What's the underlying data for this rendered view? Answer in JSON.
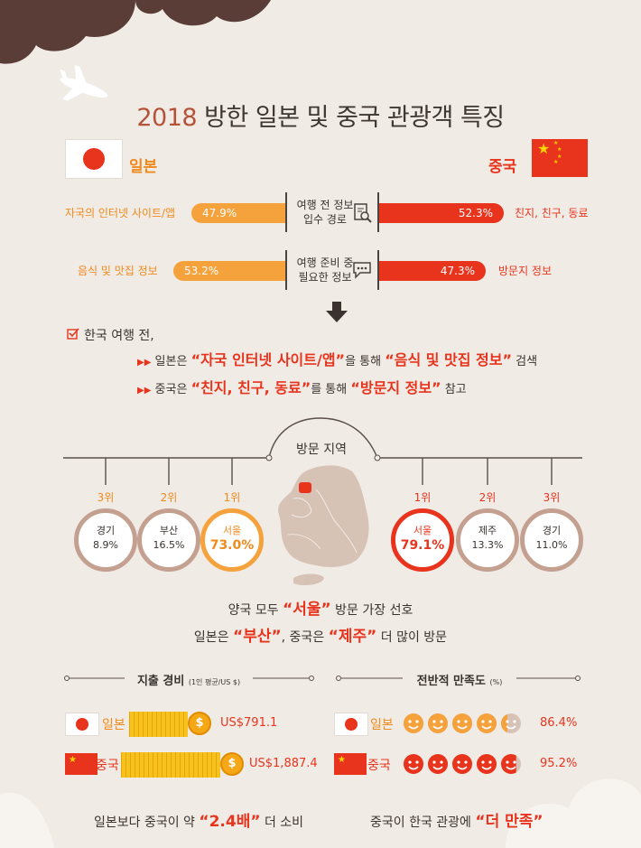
{
  "title": {
    "year": "2018",
    "text": "방한 일본 및 중국 관광객 특징"
  },
  "countries": {
    "japan": "일본",
    "china": "중국"
  },
  "rows": [
    {
      "center": [
        "여행 전 정보",
        "입수 경로"
      ],
      "jp_label": "자국의 인터넷 사이트/앱",
      "jp_value": "47.9%",
      "cn_value": "52.3%",
      "cn_label": "친지, 친구, 동료",
      "icon": "document-search-icon"
    },
    {
      "center": [
        "여행 준비 중",
        "필요한 정보"
      ],
      "jp_label": "음식 및 맛집 정보",
      "jp_value": "53.2%",
      "cn_value": "47.3%",
      "cn_label": "방문지 정보",
      "icon": "chat-bubble-icon"
    }
  ],
  "summary": {
    "heading": "한국 여행 전,",
    "line1": {
      "a": "일본은",
      "b": "“자국 인터넷 사이트/앱”",
      "c": "을 통해",
      "d": "“음식 및 맛집 정보”",
      "e": "검색"
    },
    "line2": {
      "a": "중국은",
      "b": "“친지, 친구, 동료”",
      "c": "를 통해",
      "d": "“방문지 정보”",
      "e": "참고"
    }
  },
  "visit": {
    "title": "방문 지역",
    "japan": [
      {
        "rank": "3위",
        "city": "경기",
        "value": "8.9%"
      },
      {
        "rank": "2위",
        "city": "부산",
        "value": "16.5%"
      },
      {
        "rank": "1위",
        "city": "서울",
        "value": "73.0%"
      }
    ],
    "china": [
      {
        "rank": "1위",
        "city": "서울",
        "value": "79.1%"
      },
      {
        "rank": "2위",
        "city": "제주",
        "value": "13.3%"
      },
      {
        "rank": "3위",
        "city": "경기",
        "value": "11.0%"
      }
    ],
    "msg1": {
      "a": "양국 모두",
      "b": "“서울”",
      "c": "방문 가장 선호"
    },
    "msg2": {
      "a": "일본은",
      "b": "“부산”",
      "c": ", 중국은",
      "d": "“제주”",
      "e": "더 많이 방문"
    }
  },
  "spending": {
    "title": "지출 경비",
    "unit": "(1인 평균/US $)",
    "japan_amount": "US$791.1",
    "china_amount": "US$1,887.4",
    "coin_symbol": "$",
    "footer": {
      "a": "일본보다 중국이 약",
      "b": "“2.4배”",
      "c": "더 소비"
    }
  },
  "satisfaction": {
    "title": "전반적 만족도",
    "unit": "(%)",
    "japan_value": "86.4%",
    "china_value": "95.2%",
    "japan_level": 0.864,
    "china_level": 0.952,
    "footer": {
      "a": "중국이 한국 관광에",
      "b": "“더 만족”"
    }
  },
  "colors": {
    "japan": "#f6a23c",
    "china": "#e8341c",
    "japan_face": "#f6a23c",
    "china_face": "#e8341c"
  }
}
